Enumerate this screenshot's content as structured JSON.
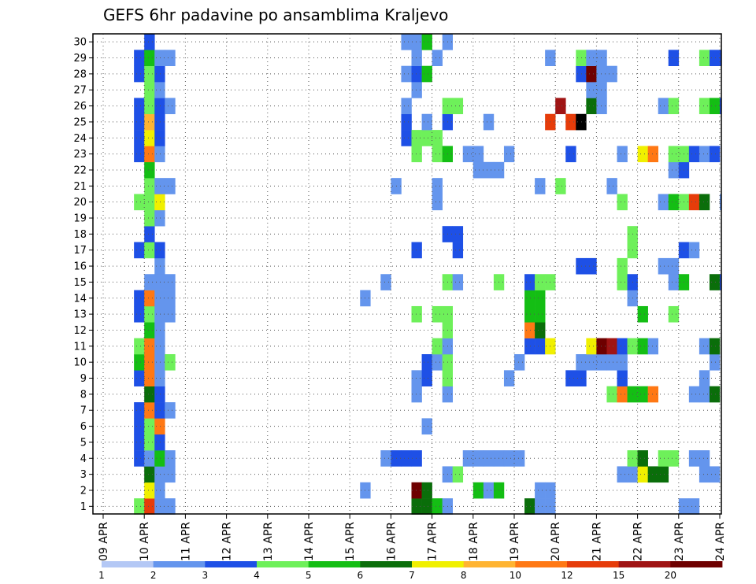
{
  "chart_data": {
    "type": "heatmap",
    "title": "GEFS 6hr padavine po ansamblima Kraljevo",
    "xlabel": "",
    "ylabel": "",
    "x_range": [
      0,
      60
    ],
    "y_range": [
      0,
      30
    ],
    "grid": true,
    "grid_style": "dotted",
    "x_tick_labels": [
      "09 APR",
      "10 APR",
      "11 APR",
      "12 APR",
      "13 APR",
      "14 APR",
      "15 APR",
      "16 APR",
      "17 APR",
      "18 APR",
      "19 APR",
      "20 APR",
      "21 APR",
      "22 APR",
      "23 APR",
      "24 APR"
    ],
    "y_tick_labels": [
      "1",
      "2",
      "3",
      "4",
      "5",
      "6",
      "7",
      "8",
      "9",
      "10",
      "11",
      "12",
      "13",
      "14",
      "15",
      "16",
      "17",
      "18",
      "19",
      "20",
      "21",
      "22",
      "23",
      "24",
      "25",
      "26",
      "27",
      "28",
      "29",
      "30"
    ],
    "legend": {
      "position": "bottom",
      "labels": [
        "1",
        "2",
        "3",
        "4",
        "5",
        "6",
        "7",
        "8",
        "10",
        "12",
        "15",
        "20"
      ],
      "colors": [
        "#b4c8f5",
        "#6495ed",
        "#1e50e6",
        "#6ef05a",
        "#14be14",
        "#0a6e0a",
        "#f0f000",
        "#ffb432",
        "#ff7814",
        "#e63c0a",
        "#a01414",
        "#6e0000"
      ]
    },
    "levels": [
      1,
      2,
      3,
      4,
      5,
      6,
      7,
      8,
      10,
      12,
      15,
      20
    ],
    "cells": [
      [
        4,
        0,
        3
      ],
      [
        4,
        3,
        2
      ],
      [
        4,
        4,
        2
      ],
      [
        4,
        5,
        2
      ],
      [
        4,
        6,
        2
      ],
      [
        4,
        8,
        2
      ],
      [
        4,
        9,
        4
      ],
      [
        4,
        10,
        3
      ],
      [
        4,
        12,
        2
      ],
      [
        4,
        13,
        2
      ],
      [
        4,
        16,
        2
      ],
      [
        4,
        19,
        3
      ],
      [
        4,
        22,
        2
      ],
      [
        4,
        23,
        2
      ],
      [
        4,
        24,
        2
      ],
      [
        4,
        25,
        2
      ],
      [
        4,
        27,
        2
      ],
      [
        4,
        28,
        2
      ],
      [
        5,
        0,
        9
      ],
      [
        5,
        1,
        6
      ],
      [
        5,
        2,
        5
      ],
      [
        5,
        3,
        1
      ],
      [
        5,
        4,
        3
      ],
      [
        5,
        5,
        3
      ],
      [
        5,
        6,
        8
      ],
      [
        5,
        7,
        5
      ],
      [
        5,
        8,
        8
      ],
      [
        5,
        9,
        8
      ],
      [
        5,
        10,
        8
      ],
      [
        5,
        11,
        4
      ],
      [
        5,
        12,
        3
      ],
      [
        5,
        13,
        8
      ],
      [
        5,
        14,
        1
      ],
      [
        5,
        16,
        3
      ],
      [
        5,
        17,
        2
      ],
      [
        5,
        18,
        3
      ],
      [
        5,
        19,
        3
      ],
      [
        5,
        20,
        3
      ],
      [
        5,
        21,
        4
      ],
      [
        5,
        22,
        8
      ],
      [
        5,
        23,
        6
      ],
      [
        5,
        24,
        7
      ],
      [
        5,
        25,
        3
      ],
      [
        5,
        26,
        3
      ],
      [
        5,
        27,
        3
      ],
      [
        5,
        28,
        4
      ],
      [
        5,
        29,
        2
      ],
      [
        6,
        0,
        1
      ],
      [
        6,
        1,
        1
      ],
      [
        6,
        2,
        1
      ],
      [
        6,
        3,
        4
      ],
      [
        6,
        4,
        2
      ],
      [
        6,
        5,
        8
      ],
      [
        6,
        6,
        2
      ],
      [
        6,
        7,
        2
      ],
      [
        6,
        8,
        1
      ],
      [
        6,
        9,
        1
      ],
      [
        6,
        10,
        1
      ],
      [
        6,
        11,
        1
      ],
      [
        6,
        12,
        1
      ],
      [
        6,
        13,
        1
      ],
      [
        6,
        14,
        1
      ],
      [
        6,
        15,
        1
      ],
      [
        6,
        16,
        2
      ],
      [
        6,
        18,
        1
      ],
      [
        6,
        19,
        6
      ],
      [
        6,
        20,
        1
      ],
      [
        6,
        22,
        1
      ],
      [
        6,
        23,
        2
      ],
      [
        6,
        24,
        2
      ],
      [
        6,
        25,
        2
      ],
      [
        6,
        26,
        1
      ],
      [
        6,
        27,
        2
      ],
      [
        6,
        28,
        1
      ],
      [
        7,
        0,
        1
      ],
      [
        7,
        2,
        1
      ],
      [
        7,
        3,
        1
      ],
      [
        7,
        6,
        1
      ],
      [
        7,
        9,
        3
      ],
      [
        7,
        12,
        1
      ],
      [
        7,
        13,
        1
      ],
      [
        7,
        14,
        1
      ],
      [
        7,
        20,
        1
      ],
      [
        7,
        25,
        1
      ],
      [
        7,
        28,
        1
      ],
      [
        26,
        13,
        1
      ],
      [
        26,
        1,
        1
      ],
      [
        28,
        3,
        1
      ],
      [
        28,
        14,
        1
      ],
      [
        29,
        3,
        2
      ],
      [
        29,
        20,
        1
      ],
      [
        30,
        3,
        2
      ],
      [
        30,
        23,
        2
      ],
      [
        30,
        24,
        2
      ],
      [
        30,
        25,
        1
      ],
      [
        30,
        29,
        1
      ],
      [
        30,
        27,
        1
      ],
      [
        31,
        0,
        5
      ],
      [
        31,
        1,
        11
      ],
      [
        31,
        3,
        2
      ],
      [
        31,
        7,
        1
      ],
      [
        31,
        8,
        1
      ],
      [
        31,
        12,
        3
      ],
      [
        31,
        16,
        2
      ],
      [
        31,
        22,
        3
      ],
      [
        31,
        23,
        3
      ],
      [
        31,
        26,
        1
      ],
      [
        31,
        27,
        2
      ],
      [
        31,
        28,
        1
      ],
      [
        31,
        29,
        1
      ],
      [
        32,
        0,
        5
      ],
      [
        32,
        1,
        5
      ],
      [
        32,
        5,
        1
      ],
      [
        32,
        8,
        2
      ],
      [
        32,
        9,
        2
      ],
      [
        32,
        23,
        3
      ],
      [
        32,
        24,
        1
      ],
      [
        32,
        27,
        4
      ],
      [
        32,
        29,
        4
      ],
      [
        33,
        0,
        4
      ],
      [
        33,
        9,
        1
      ],
      [
        33,
        10,
        3
      ],
      [
        33,
        12,
        3
      ],
      [
        33,
        19,
        1
      ],
      [
        33,
        20,
        1
      ],
      [
        33,
        22,
        3
      ],
      [
        33,
        23,
        3
      ],
      [
        33,
        28,
        1
      ],
      [
        34,
        0,
        1
      ],
      [
        34,
        2,
        1
      ],
      [
        34,
        7,
        1
      ],
      [
        34,
        8,
        3
      ],
      [
        34,
        9,
        3
      ],
      [
        34,
        10,
        1
      ],
      [
        34,
        11,
        3
      ],
      [
        34,
        12,
        3
      ],
      [
        34,
        14,
        3
      ],
      [
        34,
        17,
        2
      ],
      [
        34,
        22,
        4
      ],
      [
        34,
        24,
        2
      ],
      [
        34,
        25,
        3
      ],
      [
        34,
        29,
        1
      ],
      [
        35,
        2,
        3
      ],
      [
        35,
        14,
        1
      ],
      [
        35,
        16,
        2
      ],
      [
        35,
        17,
        2
      ],
      [
        35,
        25,
        3
      ],
      [
        36,
        3,
        1
      ],
      [
        36,
        22,
        1
      ],
      [
        37,
        1,
        4
      ],
      [
        37,
        3,
        1
      ],
      [
        37,
        22,
        1
      ],
      [
        37,
        21,
        1
      ],
      [
        38,
        1,
        1
      ],
      [
        38,
        3,
        1
      ],
      [
        38,
        21,
        1
      ],
      [
        38,
        24,
        1
      ],
      [
        39,
        1,
        4
      ],
      [
        39,
        3,
        1
      ],
      [
        39,
        14,
        3
      ],
      [
        39,
        21,
        1
      ],
      [
        40,
        3,
        1
      ],
      [
        40,
        8,
        1
      ],
      [
        40,
        22,
        1
      ],
      [
        41,
        3,
        1
      ],
      [
        41,
        9,
        1
      ],
      [
        42,
        0,
        5
      ],
      [
        42,
        10,
        2
      ],
      [
        42,
        11,
        8
      ],
      [
        42,
        12,
        4
      ],
      [
        42,
        13,
        4
      ],
      [
        42,
        14,
        2
      ],
      [
        43,
        0,
        1
      ],
      [
        43,
        1,
        1
      ],
      [
        43,
        10,
        2
      ],
      [
        43,
        11,
        5
      ],
      [
        43,
        12,
        4
      ],
      [
        43,
        13,
        4
      ],
      [
        43,
        14,
        3
      ],
      [
        43,
        20,
        1
      ],
      [
        44,
        0,
        1
      ],
      [
        44,
        1,
        1
      ],
      [
        44,
        10,
        6
      ],
      [
        44,
        14,
        3
      ],
      [
        44,
        24,
        9
      ],
      [
        44,
        28,
        1
      ],
      [
        45,
        20,
        3
      ],
      [
        45,
        25,
        10
      ],
      [
        46,
        8,
        2
      ],
      [
        46,
        22,
        2
      ],
      [
        46,
        24,
        9
      ],
      [
        47,
        8,
        2
      ],
      [
        47,
        9,
        1
      ],
      [
        47,
        15,
        2
      ],
      [
        47,
        24,
        12
      ],
      [
        47,
        27,
        2
      ],
      [
        47,
        28,
        3
      ],
      [
        48,
        9,
        1
      ],
      [
        48,
        10,
        6
      ],
      [
        48,
        15,
        2
      ],
      [
        48,
        25,
        5
      ],
      [
        48,
        26,
        1
      ],
      [
        48,
        27,
        11
      ],
      [
        48,
        28,
        1
      ],
      [
        49,
        9,
        1
      ],
      [
        49,
        10,
        11
      ],
      [
        49,
        25,
        1
      ],
      [
        49,
        26,
        1
      ],
      [
        49,
        27,
        1
      ],
      [
        49,
        28,
        1
      ],
      [
        50,
        7,
        3
      ],
      [
        50,
        9,
        1
      ],
      [
        50,
        10,
        10
      ],
      [
        50,
        20,
        1
      ],
      [
        50,
        27,
        1
      ],
      [
        51,
        2,
        1
      ],
      [
        51,
        7,
        8
      ],
      [
        51,
        8,
        2
      ],
      [
        51,
        9,
        1
      ],
      [
        51,
        10,
        2
      ],
      [
        51,
        14,
        3
      ],
      [
        51,
        15,
        3
      ],
      [
        51,
        19,
        3
      ],
      [
        51,
        22,
        1
      ],
      [
        52,
        2,
        1
      ],
      [
        52,
        3,
        3
      ],
      [
        52,
        7,
        4
      ],
      [
        52,
        10,
        3
      ],
      [
        52,
        13,
        1
      ],
      [
        52,
        14,
        2
      ],
      [
        52,
        16,
        3
      ],
      [
        52,
        17,
        3
      ],
      [
        53,
        2,
        6
      ],
      [
        53,
        3,
        5
      ],
      [
        53,
        7,
        4
      ],
      [
        53,
        10,
        4
      ],
      [
        53,
        12,
        4
      ],
      [
        53,
        22,
        6
      ],
      [
        54,
        2,
        5
      ],
      [
        54,
        10,
        1
      ],
      [
        54,
        7,
        8
      ],
      [
        54,
        22,
        8
      ],
      [
        55,
        2,
        5
      ],
      [
        55,
        3,
        3
      ],
      [
        55,
        15,
        1
      ],
      [
        55,
        19,
        1
      ],
      [
        55,
        25,
        1
      ],
      [
        56,
        3,
        3
      ],
      [
        56,
        12,
        3
      ],
      [
        56,
        14,
        1
      ],
      [
        56,
        15,
        1
      ],
      [
        56,
        19,
        4
      ],
      [
        56,
        21,
        1
      ],
      [
        56,
        22,
        3
      ],
      [
        56,
        25,
        3
      ],
      [
        56,
        28,
        2
      ],
      [
        57,
        0,
        1
      ],
      [
        57,
        14,
        4
      ],
      [
        57,
        16,
        2
      ],
      [
        57,
        19,
        3
      ],
      [
        57,
        21,
        2
      ],
      [
        57,
        22,
        3
      ],
      [
        58,
        0,
        1
      ],
      [
        58,
        3,
        1
      ],
      [
        58,
        7,
        1
      ],
      [
        58,
        16,
        1
      ],
      [
        58,
        19,
        9
      ],
      [
        58,
        22,
        2
      ],
      [
        59,
        2,
        1
      ],
      [
        59,
        3,
        1
      ],
      [
        59,
        7,
        1
      ],
      [
        59,
        8,
        1
      ],
      [
        59,
        10,
        1
      ],
      [
        59,
        19,
        5
      ],
      [
        59,
        22,
        1
      ],
      [
        59,
        25,
        3
      ],
      [
        59,
        28,
        3
      ],
      [
        60,
        2,
        1
      ],
      [
        60,
        7,
        5
      ],
      [
        60,
        9,
        1
      ],
      [
        60,
        10,
        5
      ],
      [
        60,
        14,
        5
      ],
      [
        60,
        22,
        2
      ],
      [
        60,
        25,
        4
      ],
      [
        60,
        28,
        2
      ],
      [
        61,
        14,
        2
      ],
      [
        61,
        19,
        1
      ],
      [
        61,
        25,
        2
      ],
      [
        61,
        28,
        2
      ]
    ]
  }
}
